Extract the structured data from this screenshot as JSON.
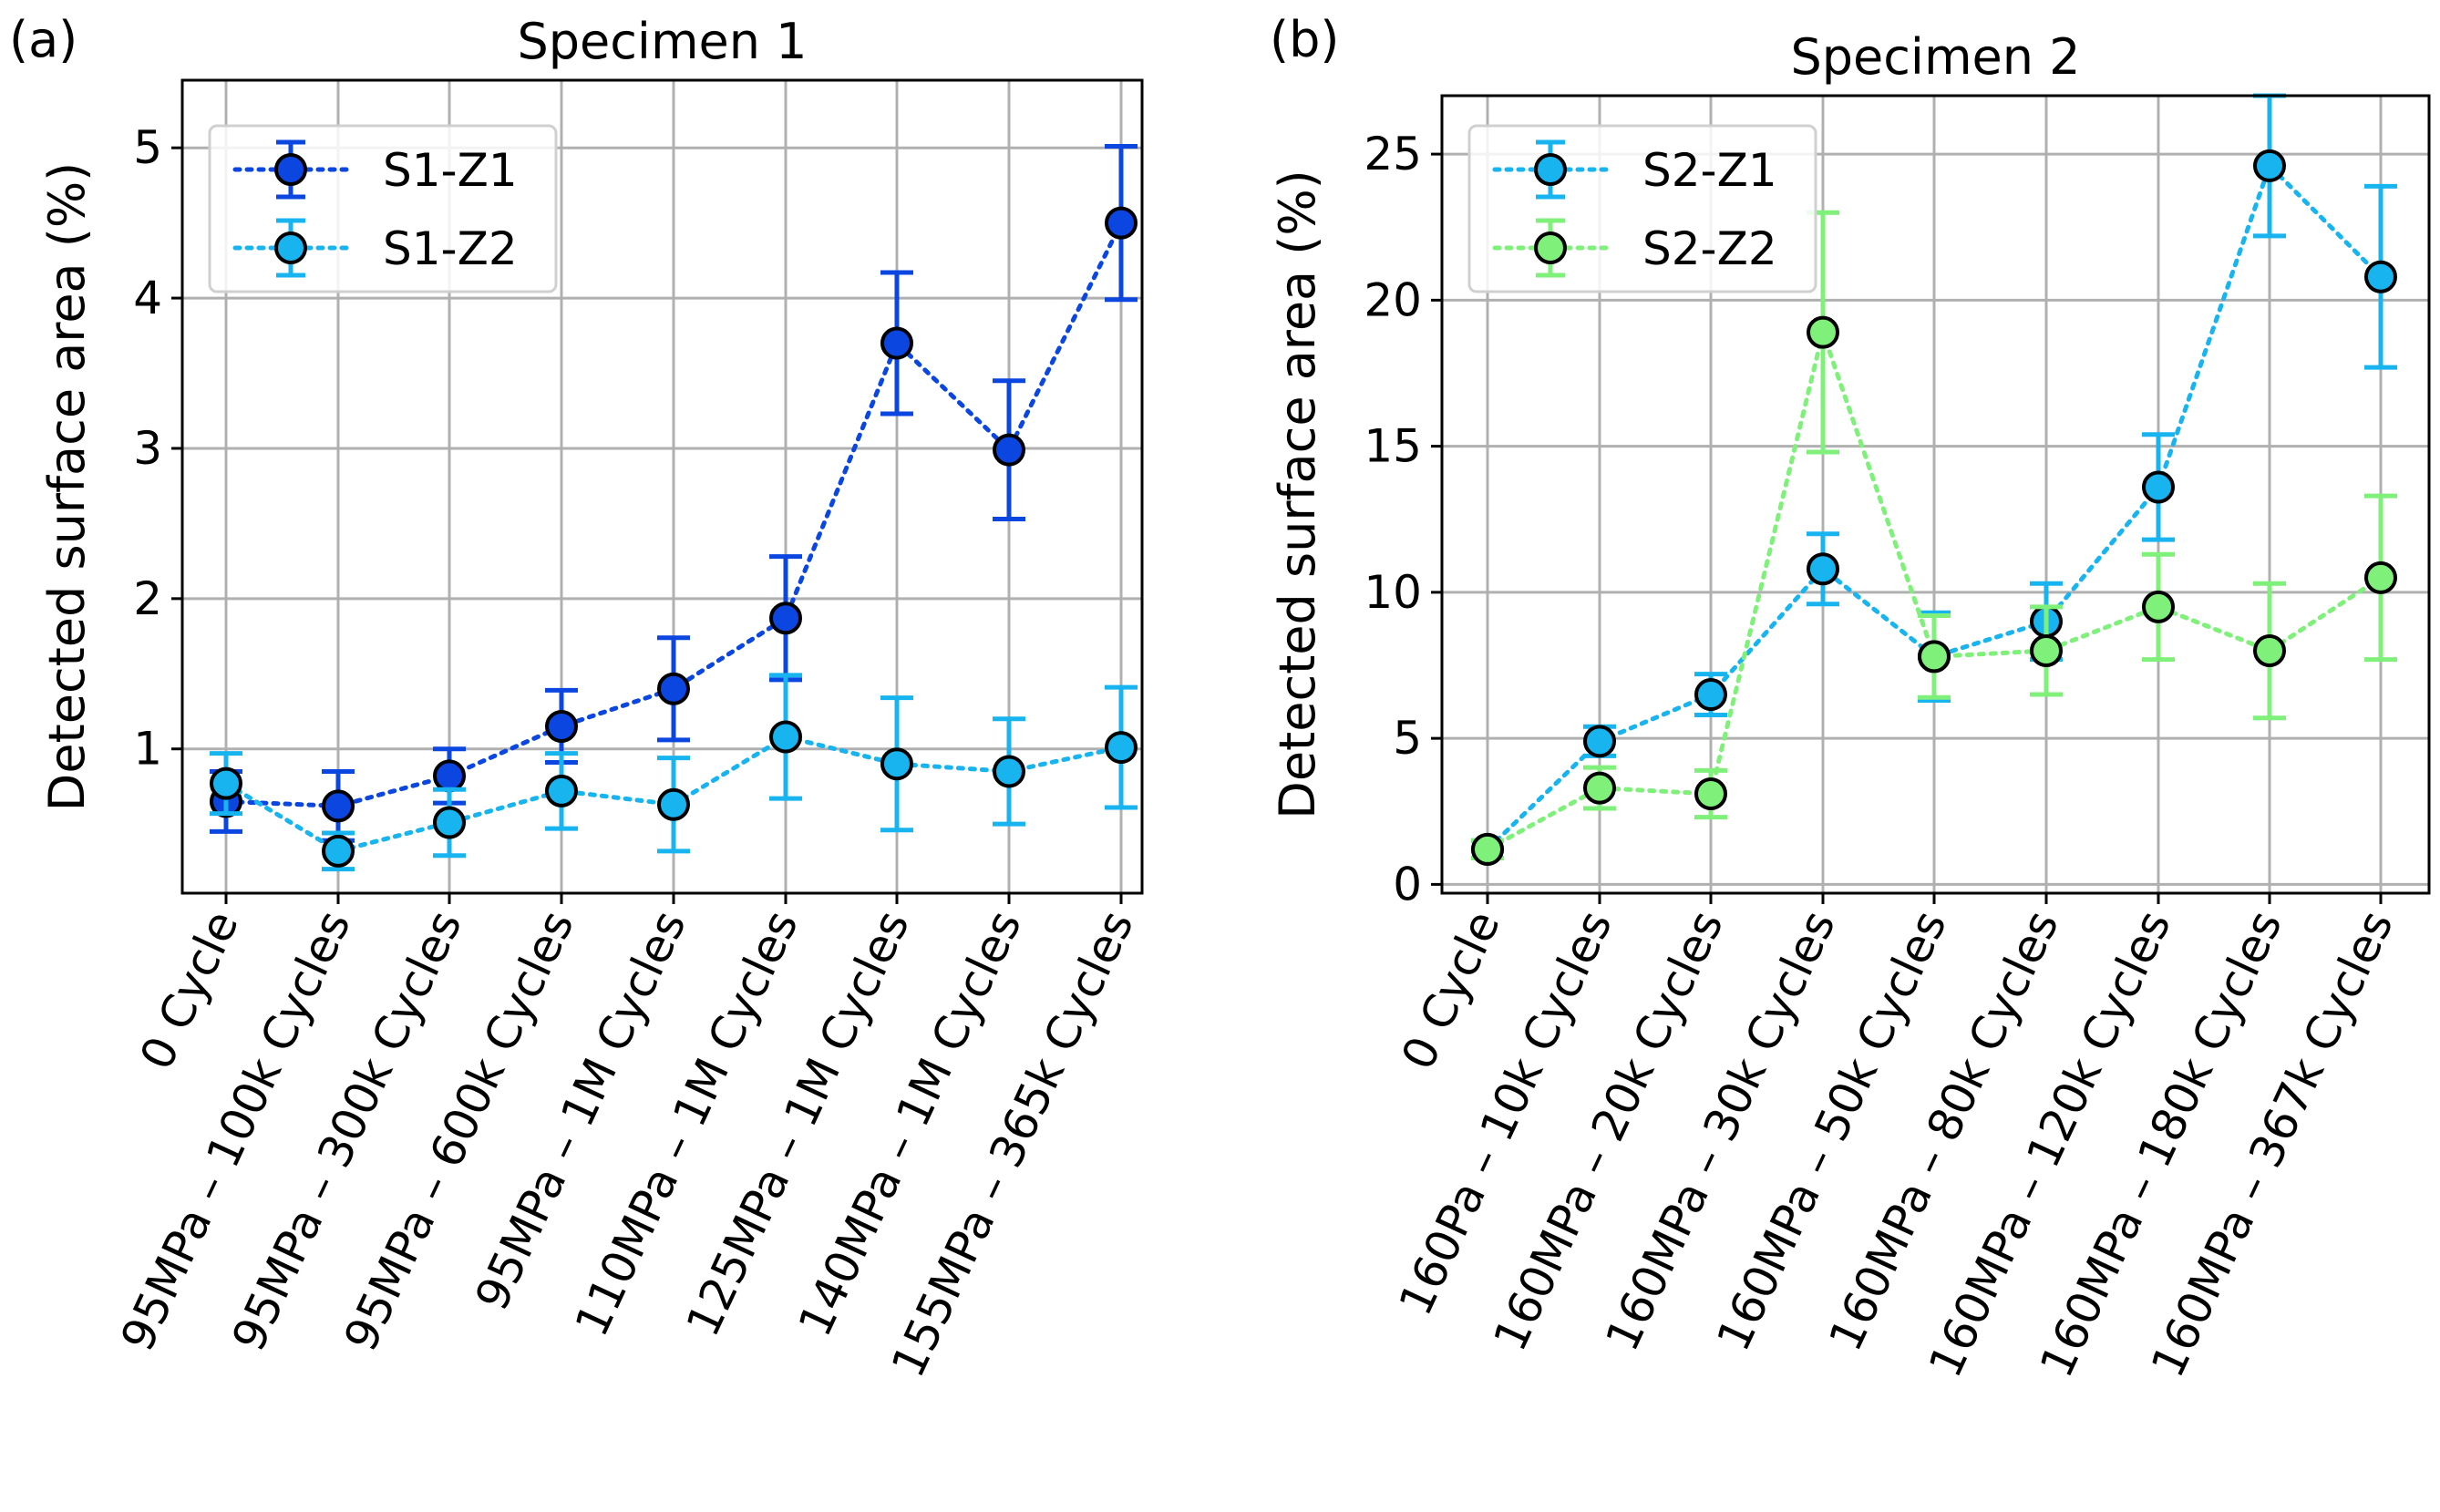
{
  "chart_data": [
    {
      "type": "line",
      "panel_label": "(a)",
      "title": "Specimen 1",
      "ylabel": "Detected surface area (%)",
      "xlabel": "",
      "ylim": [
        0.04,
        5.45
      ],
      "yticks": [
        1,
        2,
        3,
        4,
        5
      ],
      "grid": true,
      "legend_position": "top-left",
      "categories": [
        "0 Cycle",
        "95MPa – 100k Cycles",
        "95MPa – 300k Cycles",
        "95MPa – 600k Cycles",
        "95MPa – 1M Cycles",
        "110MPa – 1M Cycles",
        "125MPa – 1M Cycles",
        "140MPa – 1M Cycles",
        "155MPa – 365k Cycles"
      ],
      "series": [
        {
          "name": "S1-Z1",
          "color": "#0b46e0",
          "values": [
            0.65,
            0.62,
            0.82,
            1.15,
            1.4,
            1.87,
            3.7,
            2.99,
            4.5
          ],
          "errors": [
            0.2,
            0.23,
            0.18,
            0.24,
            0.34,
            0.41,
            0.47,
            0.46,
            0.51
          ]
        },
        {
          "name": "S1-Z2",
          "color": "#18b4f0",
          "values": [
            0.77,
            0.32,
            0.51,
            0.72,
            0.63,
            1.08,
            0.9,
            0.85,
            1.01
          ],
          "errors": [
            0.2,
            0.12,
            0.22,
            0.25,
            0.31,
            0.41,
            0.44,
            0.35,
            0.4
          ]
        }
      ]
    },
    {
      "type": "line",
      "panel_label": "(b)",
      "title": "Specimen 2",
      "ylabel": "Detected surface area (%)",
      "xlabel": "",
      "ylim": [
        -0.3,
        27.0
      ],
      "yticks": [
        0,
        5,
        10,
        15,
        20,
        25
      ],
      "grid": true,
      "legend_position": "top-left",
      "categories": [
        "0 Cycle",
        "160Pa – 10k Cycles",
        "160MPa – 20k Cycles",
        "160MPa – 30k Cycles",
        "160MPa – 50k Cycles",
        "160MPa – 80k Cycles",
        "160MPa – 120k Cycles",
        "160MPa – 180k Cycles",
        "160MPa – 367k Cycles"
      ],
      "series": [
        {
          "name": "S2-Z1",
          "color": "#18b4f0",
          "values": [
            1.2,
            4.9,
            6.5,
            10.8,
            7.8,
            9.0,
            13.6,
            24.6,
            20.8
          ],
          "errors": [
            0.3,
            0.5,
            0.7,
            1.2,
            1.5,
            1.3,
            1.8,
            2.4,
            3.1
          ]
        },
        {
          "name": "S2-Z2",
          "color": "#7ff07a",
          "values": [
            1.2,
            3.3,
            3.1,
            18.9,
            7.8,
            8.0,
            9.5,
            8.0,
            10.5
          ],
          "errors": [
            0.3,
            0.7,
            0.8,
            4.1,
            1.4,
            1.5,
            1.8,
            2.3,
            2.8
          ]
        }
      ]
    }
  ]
}
